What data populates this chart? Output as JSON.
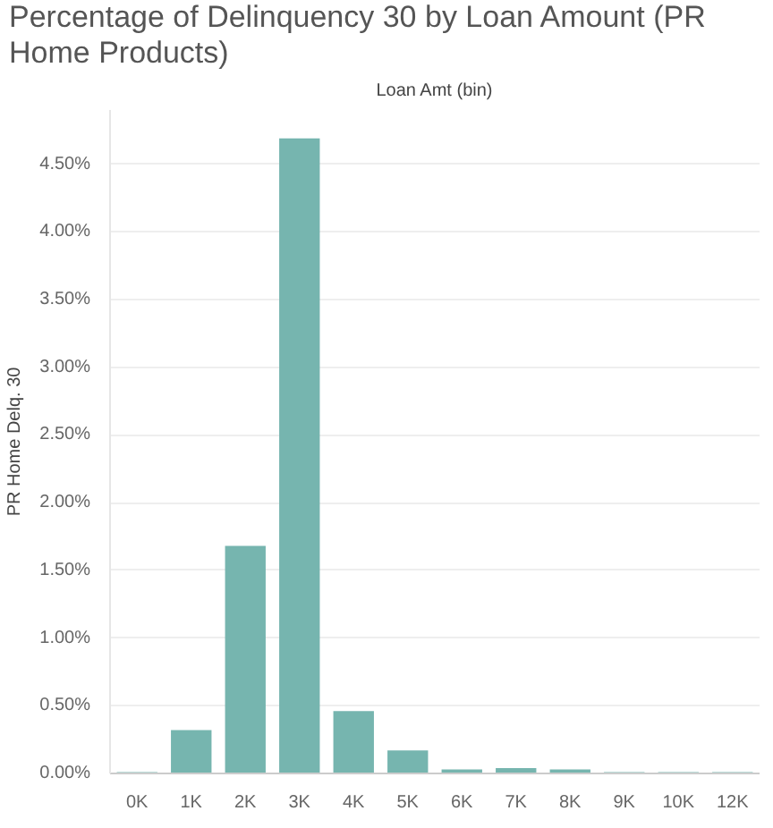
{
  "chart_data": {
    "type": "bar",
    "title": "Percentage of Delinquency 30 by Loan Amount (PR Home Products)",
    "xlabel": "Loan Amt (bin)",
    "ylabel": "PR Home Delq. 30",
    "categories": [
      "0K",
      "1K",
      "2K",
      "3K",
      "4K",
      "5K",
      "6K",
      "7K",
      "8K",
      "9K",
      "10K",
      "12K"
    ],
    "values": [
      0.01,
      0.32,
      1.68,
      4.69,
      0.46,
      0.17,
      0.03,
      0.04,
      0.03,
      0.01,
      0.01,
      0.01
    ],
    "color": "#76b5af",
    "ylim": [
      0,
      4.9
    ],
    "yticks": [
      {
        "value": 0,
        "label": "0.00%"
      },
      {
        "value": 0.5,
        "label": "0.50%"
      },
      {
        "value": 1,
        "label": "1.00%"
      },
      {
        "value": 1.5,
        "label": "1.50%"
      },
      {
        "value": 2,
        "label": "2.00%"
      },
      {
        "value": 2.5,
        "label": "2.50%"
      },
      {
        "value": 3,
        "label": "3.00%"
      },
      {
        "value": 3.5,
        "label": "3.50%"
      },
      {
        "value": 4,
        "label": "4.00%"
      },
      {
        "value": 4.5,
        "label": "4.50%"
      }
    ],
    "grid": "y"
  }
}
